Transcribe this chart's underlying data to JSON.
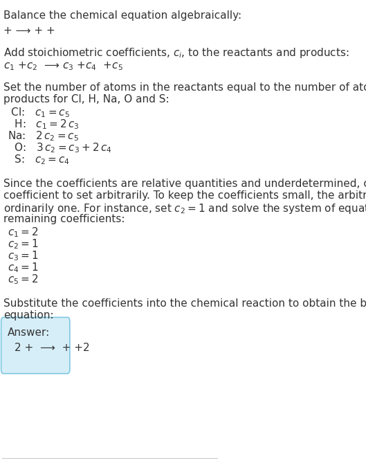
{
  "title": "Balance the chemical equation algebraically:",
  "line1": "+ ⟶ + +",
  "section2_header": "Add stoichiometric coefficients, $c_i$, to the reactants and products:",
  "line2": "$c_1$ +$c_2$  ⟶ $c_3$ +$c_4$  +$c_5$",
  "section3_header": "Set the number of atoms in the reactants equal to the number of atoms in the\nproducts for Cl, H, Na, O and S:",
  "equations": [
    " Cl:   $c_1 = c_5$",
    "  H:   $c_1 = 2\\,c_3$",
    "Na:   $2\\,c_2 = c_5$",
    "  O:   $3\\,c_2 = c_3 + 2\\,c_4$",
    "  S:   $c_2 = c_4$"
  ],
  "section4_header": "Since the coefficients are relative quantities and underdetermined, choose a\ncoefficient to set arbitrarily. To keep the coefficients small, the arbitrary value is\nordinarily one. For instance, set $c_2 = 1$ and solve the system of equations for the\nremaining coefficients:",
  "coefficients": [
    "$c_1 = 2$",
    "$c_2 = 1$",
    "$c_3 = 1$",
    "$c_4 = 1$",
    "$c_5 = 2$"
  ],
  "section5_header": "Substitute the coefficients into the chemical reaction to obtain the balanced\nequation:",
  "answer_label": "Answer:",
  "answer_equation": "2 +  ⟶  + +2",
  "bg_color": "#ffffff",
  "text_color": "#333333",
  "line_color": "#cccccc",
  "answer_box_color": "#d6eef8",
  "answer_box_border": "#7ec8e3"
}
